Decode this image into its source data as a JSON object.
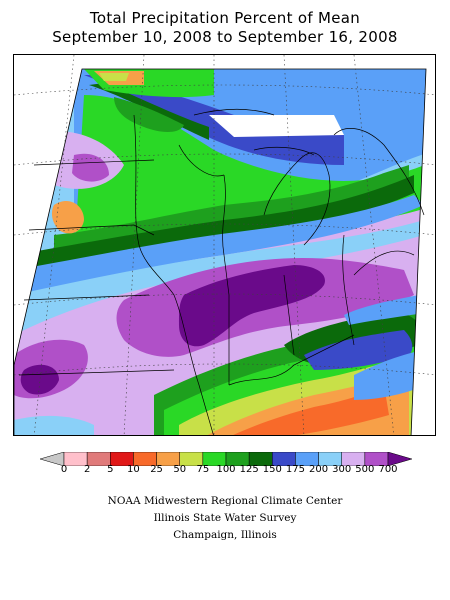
{
  "title_line1": "Total Precipitation Percent of Mean",
  "title_line2": "September 10, 2008 to September 16, 2008",
  "legend": {
    "labels": [
      "0",
      "2",
      "5",
      "10",
      "25",
      "50",
      "75",
      "100",
      "125",
      "150",
      "175",
      "200",
      "300",
      "500",
      "700"
    ],
    "colors": [
      "#c8c8c8",
      "#ffc0cb",
      "#e07a7a",
      "#e01818",
      "#f86a2a",
      "#f7a048",
      "#c8e048",
      "#2ad826",
      "#1ea01e",
      "#0b6a0b",
      "#3a4ac8",
      "#5aa0f8",
      "#8ad0f8",
      "#d8b0f0",
      "#b050c8",
      "#6a0a8a"
    ]
  },
  "credits": [
    "NOAA Midwestern Regional Climate Center",
    "Illinois State Water Survey",
    "Champaign, Illinois"
  ]
}
